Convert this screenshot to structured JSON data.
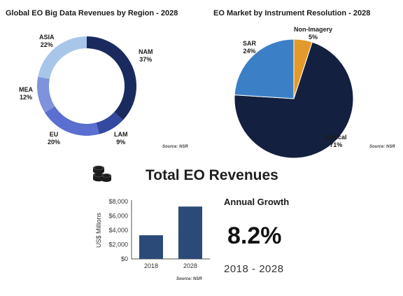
{
  "charts": [
    {
      "type": "donut",
      "title": "Global EO Big Data Revenues by Region - 2028",
      "source": "Source: NSR",
      "slices": [
        {
          "label": "NAM",
          "value": 37,
          "value_label": "37%",
          "color": "#1b2a5e"
        },
        {
          "label": "LAM",
          "value": 9,
          "value_label": "9%",
          "color": "#3449a0"
        },
        {
          "label": "EU",
          "value": 20,
          "value_label": "20%",
          "color": "#5a6fd0"
        },
        {
          "label": "MEA",
          "value": 12,
          "value_label": "12%",
          "color": "#7f93dc"
        },
        {
          "label": "ASIA",
          "value": 22,
          "value_label": "22%",
          "color": "#a8c6ea"
        }
      ]
    },
    {
      "type": "pie",
      "title": "EO Market by Instrument Resolution - 2028",
      "source": "Source: NSR",
      "slices": [
        {
          "label": "Non-Imagery",
          "value": 5,
          "value_label": "5%",
          "color": "#e29a2a"
        },
        {
          "label": "Optical",
          "value": 71,
          "value_label": "71%",
          "color": "#14203f"
        },
        {
          "label": "SAR",
          "value": 24,
          "value_label": "24%",
          "color": "#3b7fc7"
        }
      ]
    },
    {
      "type": "bar",
      "title": "Total EO Revenues",
      "ylabel": "US$ Millions",
      "source": "Source: NSR",
      "categories": [
        "2018",
        "2028"
      ],
      "values": [
        3300,
        7300
      ],
      "ylim": [
        0,
        8000
      ],
      "yticks": [
        0,
        2000,
        4000,
        6000,
        8000
      ],
      "ytick_labels": [
        "$0",
        "$2,000",
        "$4,000",
        "$6,000",
        "$8,000"
      ],
      "grid": false,
      "bar_color": "#2c4a78"
    }
  ],
  "growth": {
    "label": "Annual Growth",
    "value": "8.2%",
    "period": "2018 - 2028"
  },
  "icons": {
    "coins": "coins-icon"
  }
}
